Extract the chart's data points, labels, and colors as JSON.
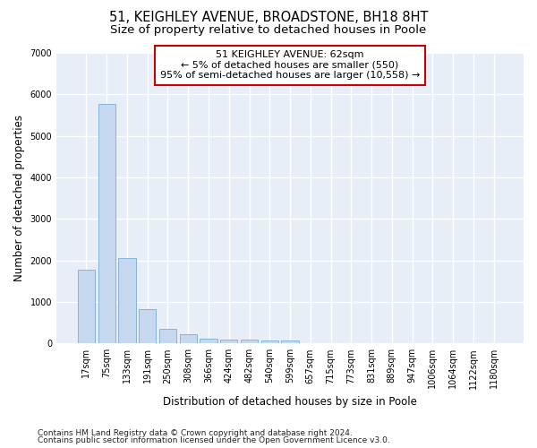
{
  "title": "51, KEIGHLEY AVENUE, BROADSTONE, BH18 8HT",
  "subtitle": "Size of property relative to detached houses in Poole",
  "xlabel": "Distribution of detached houses by size in Poole",
  "ylabel": "Number of detached properties",
  "bar_color": "#c5d8ef",
  "bar_edge_color": "#7aadd4",
  "background_color": "#e8eef8",
  "grid_color": "#ffffff",
  "fig_background": "#ffffff",
  "categories": [
    "17sqm",
    "75sqm",
    "133sqm",
    "191sqm",
    "250sqm",
    "308sqm",
    "366sqm",
    "424sqm",
    "482sqm",
    "540sqm",
    "599sqm",
    "657sqm",
    "715sqm",
    "773sqm",
    "831sqm",
    "889sqm",
    "947sqm",
    "1006sqm",
    "1064sqm",
    "1122sqm",
    "1180sqm"
  ],
  "values": [
    1780,
    5760,
    2060,
    820,
    350,
    230,
    120,
    100,
    90,
    75,
    75,
    0,
    0,
    0,
    0,
    0,
    0,
    0,
    0,
    0,
    0
  ],
  "ylim": [
    0,
    7000
  ],
  "yticks": [
    0,
    1000,
    2000,
    3000,
    4000,
    5000,
    6000,
    7000
  ],
  "annotation_line1": "51 KEIGHLEY AVENUE: 62sqm",
  "annotation_line2": "← 5% of detached houses are smaller (550)",
  "annotation_line3": "95% of semi-detached houses are larger (10,558) →",
  "annotation_box_color": "#ffffff",
  "annotation_box_edge": "#cc0000",
  "footnote1": "Contains HM Land Registry data © Crown copyright and database right 2024.",
  "footnote2": "Contains public sector information licensed under the Open Government Licence v3.0.",
  "title_fontsize": 10.5,
  "subtitle_fontsize": 9.5,
  "annotation_fontsize": 8,
  "tick_fontsize": 7,
  "label_fontsize": 8.5,
  "footnote_fontsize": 6.5
}
